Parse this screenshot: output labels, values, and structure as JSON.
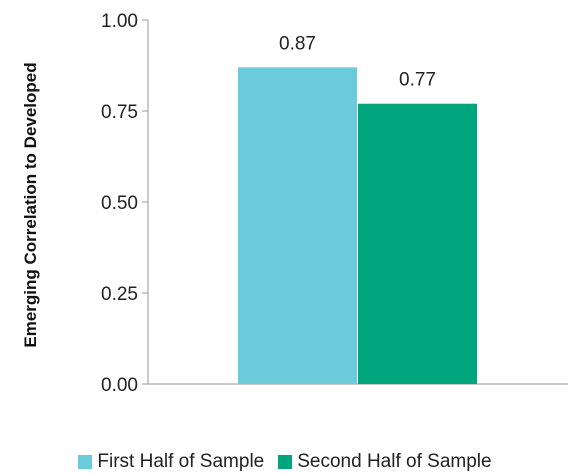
{
  "chart_data": {
    "type": "bar",
    "categories": [
      ""
    ],
    "series": [
      {
        "name": "First Half of Sample",
        "values": [
          0.87
        ],
        "color": "#6ccbdb"
      },
      {
        "name": "Second Half of Sample",
        "values": [
          0.77
        ],
        "color": "#00a57e"
      }
    ],
    "data_labels": [
      "0.87",
      "0.77"
    ],
    "ylabel": "Emerging Correlation to Developed",
    "ylim": [
      0,
      1
    ],
    "yticks": [
      "0.00",
      "0.25",
      "0.50",
      "0.75",
      "1.00"
    ],
    "grid": false,
    "legend_position": "bottom"
  }
}
